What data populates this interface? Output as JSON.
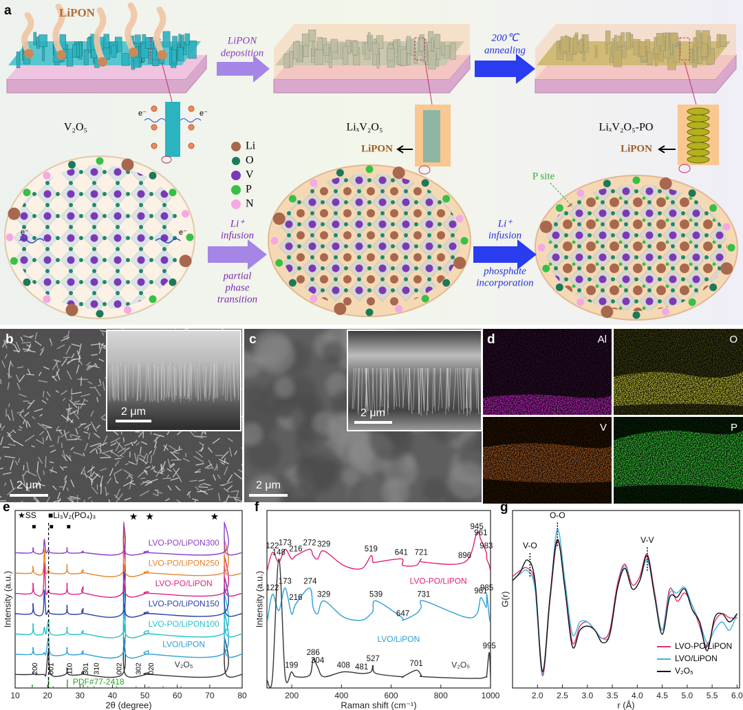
{
  "panel_a": {
    "label": "a",
    "plume": "LiPON",
    "step1": [
      "LiPON",
      "deposition"
    ],
    "step2": [
      "200℃",
      "annealing"
    ],
    "stages": [
      "V₂O₅",
      "LiₓV₂O₅",
      "LiₓV₂O₅-PO"
    ],
    "coating": [
      "LiPON",
      "LiPON"
    ],
    "electron": "e⁻",
    "legend": [
      "Li",
      "O",
      "V",
      "P",
      "N"
    ],
    "step3": {
      "top": [
        "Li⁺",
        "infusion"
      ],
      "bottom": [
        "partial",
        "phase",
        "transition"
      ]
    },
    "step4": {
      "top": [
        "Li⁺",
        "infusion"
      ],
      "bottom": [
        "phosphate",
        "incorporation"
      ]
    },
    "p_site": "P site"
  },
  "panel_b": {
    "label": "b",
    "scale_bar": "2 μm",
    "inset_scale_bar": "2 μm"
  },
  "panel_c": {
    "label": "c",
    "scale_bar": "2 μm",
    "inset_scale_bar": "2 μm"
  },
  "panel_d": {
    "label": "d",
    "maps": [
      "Al",
      "O",
      "V",
      "P"
    ]
  },
  "chart_data": [
    {
      "type": "line",
      "panel": "e",
      "xlabel": "2θ (degree)",
      "ylabel": "Intensity (a.u.)",
      "xlim": [
        10,
        80
      ],
      "xticks": [
        10,
        20,
        30,
        40,
        50,
        60,
        70,
        80
      ],
      "ylim": [
        0,
        105
      ],
      "x": [
        10,
        15,
        15.5,
        16,
        18.5,
        19,
        19.5,
        20.3,
        21,
        25.5,
        26,
        26.5,
        30.5,
        31,
        31.5,
        43,
        43.5,
        44,
        50.5,
        51,
        51.5,
        74,
        74.5,
        75,
        80
      ],
      "series": [
        {
          "name": "V₂O₅",
          "color": "#333333",
          "values": [
            8,
            8,
            9,
            8,
            8,
            8,
            8,
            22,
            8,
            8,
            12,
            8,
            8,
            10,
            8,
            8,
            30,
            8,
            8,
            9,
            8,
            8,
            30,
            8,
            8
          ]
        },
        {
          "name": "LVO/LiPON",
          "color": "#2a9fd6",
          "values": [
            20,
            20,
            24,
            20,
            20,
            21,
            20,
            30,
            20,
            20,
            24,
            20,
            20,
            22,
            20,
            20,
            50,
            20,
            20,
            22,
            20,
            20,
            45,
            20,
            20
          ]
        },
        {
          "name": "LVO-PO/LiPON100",
          "color": "#22c4c4",
          "values": [
            32,
            32,
            38,
            32,
            32,
            36,
            32,
            40,
            32,
            32,
            36,
            32,
            32,
            34,
            32,
            32,
            62,
            32,
            32,
            34,
            32,
            32,
            56,
            32,
            32
          ]
        },
        {
          "name": "LVO-PO/LiPON150",
          "color": "#2b3fa8",
          "values": [
            44,
            44,
            50,
            44,
            44,
            58,
            44,
            46,
            44,
            44,
            49,
            44,
            44,
            47,
            44,
            44,
            72,
            44,
            44,
            45,
            44,
            44,
            66,
            44,
            44
          ]
        },
        {
          "name": "LVO-PO/LiPON",
          "color": "#e0208a",
          "values": [
            56,
            56,
            62,
            56,
            56,
            74,
            56,
            58,
            56,
            56,
            62,
            56,
            56,
            60,
            56,
            56,
            86,
            56,
            56,
            57,
            56,
            56,
            78,
            56,
            56
          ]
        },
        {
          "name": "LVO-PO/LiPON250",
          "color": "#e8842a",
          "values": [
            68,
            68,
            72,
            68,
            68,
            82,
            68,
            70,
            68,
            68,
            73,
            68,
            68,
            70,
            68,
            68,
            96,
            68,
            68,
            69,
            68,
            68,
            88,
            68,
            68
          ]
        },
        {
          "name": "LVO-PO/LiPON300",
          "color": "#8a3fc8",
          "values": [
            80,
            80,
            83,
            80,
            80,
            88,
            80,
            82,
            80,
            80,
            83,
            80,
            80,
            81,
            80,
            80,
            98,
            80,
            80,
            81,
            80,
            80,
            98,
            80,
            80
          ]
        }
      ],
      "reference": {
        "name": "PDF#77-2418",
        "color": "#2ca02c",
        "x": [
          15.3,
          20.3,
          21.7,
          26.1,
          31,
          32.4,
          34.3,
          41.3,
          47.3,
          51.2,
          55.6,
          61.1
        ],
        "values": [
          2,
          6,
          1,
          5,
          2,
          1,
          1,
          1,
          1,
          1,
          1,
          1
        ]
      },
      "annotations": [
        {
          "text": "200",
          "x": 15.4
        },
        {
          "text": "001",
          "x": 20.3
        },
        {
          "text": "110",
          "x": 26.1
        },
        {
          "text": "301",
          "x": 31
        },
        {
          "text": "310",
          "x": 34.3
        },
        {
          "text": "002",
          "x": 41.3
        },
        {
          "text": "302",
          "x": 47.3
        },
        {
          "text": "020",
          "x": 51.2
        }
      ],
      "star_legend": "★SS",
      "square_legend": "■Li₃V₂(PO₄)₃",
      "star": "★",
      "square": "■",
      "stars": [
        46.5,
        51.5,
        71.5
      ],
      "squares": [
        15.8,
        21.2,
        26.5
      ],
      "dashed_x": 20.3
    },
    {
      "type": "line",
      "panel": "f",
      "xlabel": "Raman shift (cm⁻¹)",
      "ylabel": "Intensity (a.u.)",
      "xlim": [
        100,
        1000
      ],
      "xticks": [
        200,
        400,
        600,
        800,
        1000
      ],
      "ylim": [
        0,
        110
      ],
      "x": [
        100,
        122,
        148,
        173,
        199,
        216,
        272,
        286,
        304,
        329,
        408,
        481,
        519,
        527,
        539,
        641,
        647,
        701,
        721,
        731,
        896,
        945,
        961,
        983,
        985,
        995,
        1000
      ],
      "series": [
        {
          "name": "LVO-PO/LiPON",
          "color": "#e0207a",
          "values": [
            72,
            84,
            78,
            86,
            80,
            82,
            86,
            82,
            80,
            85,
            76,
            74,
            82,
            78,
            78,
            80,
            76,
            76,
            80,
            78,
            78,
            96,
            92,
            84,
            80,
            76,
            72
          ],
          "peaks": [
            122,
            173,
            216,
            272,
            329,
            519,
            641,
            721,
            896,
            945,
            961,
            983
          ]
        },
        {
          "name": "LVO/LiPON",
          "color": "#2a9fd6",
          "values": [
            40,
            58,
            48,
            62,
            46,
            52,
            62,
            50,
            46,
            54,
            44,
            42,
            46,
            48,
            54,
            44,
            42,
            46,
            50,
            54,
            44,
            46,
            56,
            50,
            58,
            44,
            40
          ],
          "peaks": [
            122,
            173,
            216,
            274,
            329,
            539,
            647,
            731,
            961,
            985
          ]
        },
        {
          "name": "V₂O₅",
          "color": "#333333",
          "values": [
            5,
            6,
            80,
            8,
            10,
            7,
            8,
            18,
            13,
            7,
            10,
            9,
            10,
            14,
            9,
            7,
            7,
            11,
            8,
            7,
            6,
            6,
            6,
            7,
            8,
            22,
            6
          ],
          "peaks": [
            148,
            199,
            286,
            304,
            408,
            481,
            527,
            701,
            995
          ]
        }
      ]
    },
    {
      "type": "line",
      "panel": "g",
      "xlabel": "r (Å)",
      "ylabel": "G(r)",
      "xlim": [
        1.5,
        6.05
      ],
      "xticks": [
        {
          "value": 2,
          "label": "2.0"
        },
        2.5,
        {
          "value": 3,
          "label": "3.0"
        },
        3.5,
        {
          "value": 4,
          "label": "4.0"
        },
        4.5,
        {
          "value": 5,
          "label": "5.0"
        },
        5.5,
        {
          "value": 6,
          "label": "6.0"
        }
      ],
      "ylim": [
        -1,
        1.15
      ],
      "x": [
        1.5,
        1.65,
        1.8,
        1.95,
        2.1,
        2.25,
        2.4,
        2.55,
        2.7,
        2.85,
        3.0,
        3.15,
        3.3,
        3.45,
        3.6,
        3.75,
        3.9,
        4.05,
        4.2,
        4.35,
        4.5,
        4.65,
        4.8,
        4.95,
        5.1,
        5.25,
        5.4,
        5.55,
        5.7,
        5.85,
        6.0
      ],
      "series": [
        {
          "name": "LVO-PO/LiPON",
          "color": "#e0306a",
          "values": [
            0.35,
            0.42,
            0.45,
            0.25,
            -0.85,
            0.05,
            0.78,
            0.25,
            -0.45,
            -0.25,
            -0.2,
            -0.3,
            -0.4,
            -0.3,
            0.25,
            0.5,
            0.25,
            0.35,
            0.62,
            0.15,
            -0.3,
            0.2,
            0.05,
            0.15,
            0.0,
            -0.25,
            -0.5,
            -0.2,
            -0.1,
            -0.15,
            -0.15
          ]
        },
        {
          "name": "LVO/LiPON",
          "color": "#40b0e0",
          "values": [
            0.3,
            0.38,
            0.42,
            0.2,
            -0.82,
            0.08,
            0.92,
            0.3,
            -0.35,
            -0.2,
            -0.2,
            -0.3,
            -0.4,
            -0.35,
            0.2,
            0.48,
            0.2,
            0.3,
            0.55,
            0.12,
            -0.3,
            0.15,
            0.15,
            0.22,
            0.0,
            -0.2,
            -0.45,
            -0.3,
            -0.2,
            -0.3,
            -0.1
          ]
        },
        {
          "name": "V₂O₅",
          "color": "#111111",
          "values": [
            0.3,
            0.4,
            0.55,
            0.3,
            -0.8,
            0.1,
            0.8,
            0.2,
            -0.5,
            -0.3,
            -0.25,
            -0.3,
            -0.45,
            -0.35,
            0.2,
            0.45,
            0.2,
            0.3,
            0.6,
            0.1,
            -0.35,
            0.1,
            0.1,
            0.2,
            -0.05,
            -0.2,
            -0.55,
            -0.15,
            -0.1,
            -0.2,
            -0.1
          ]
        }
      ],
      "annotations": [
        {
          "text": "V-O",
          "x": 1.85
        },
        {
          "text": "O-O",
          "x": 2.4
        },
        {
          "text": "V-V",
          "x": 4.2
        }
      ],
      "legend": "lower right"
    }
  ]
}
